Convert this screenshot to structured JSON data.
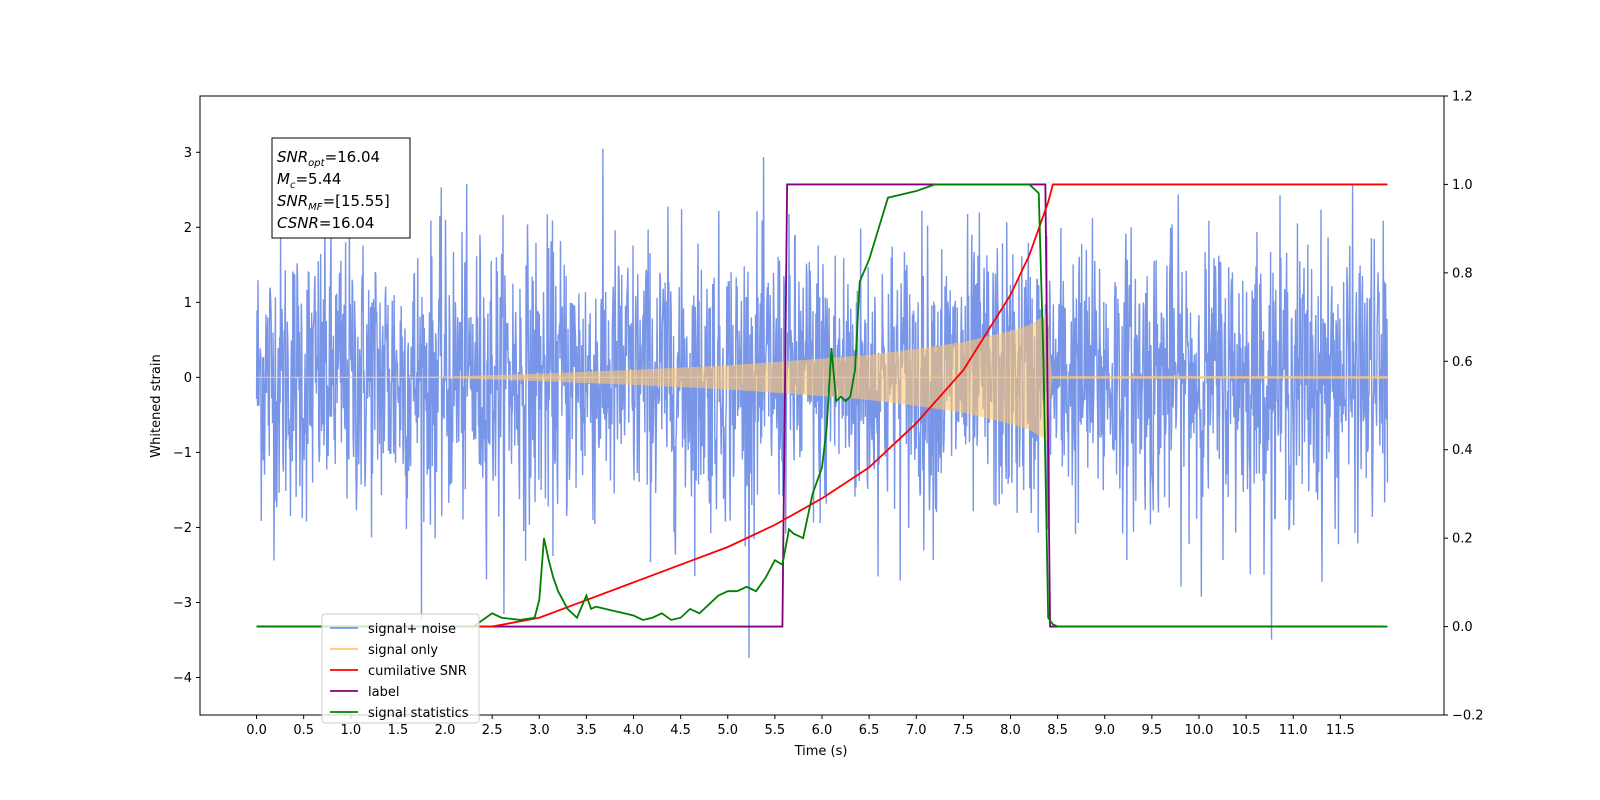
{
  "chart_data": {
    "type": "line",
    "xlabel": "Time (s)",
    "ylabel": "Whitened strain",
    "x_ticks": [
      "0.0",
      "0.5",
      "1.0",
      "1.5",
      "2.0",
      "2.5",
      "3.0",
      "3.5",
      "4.0",
      "4.5",
      "5.0",
      "5.5",
      "6.0",
      "6.5",
      "7.0",
      "7.5",
      "8.0",
      "8.5",
      "9.0",
      "9.5",
      "10.0",
      "10.5",
      "11.0",
      "11.5"
    ],
    "xlim": [
      -0.6,
      12.6
    ],
    "y_left_ticks": [
      "3",
      "2",
      "1",
      "0",
      "−1",
      "−2",
      "−3",
      "−4"
    ],
    "ylim_left": [
      -4.5,
      3.75
    ],
    "y_right_ticks": [
      "1.2",
      "1.0",
      "0.8",
      "0.6",
      "0.4",
      "0.2",
      "0.0",
      "−0.2"
    ],
    "ylim_right": [
      -0.2,
      1.2
    ],
    "info_box": {
      "lines": [
        {
          "base": "SNR",
          "sub": "opt",
          "value": "=16.04"
        },
        {
          "base": "M",
          "sub": "c",
          "value": "=5.44"
        },
        {
          "base": "SNR",
          "sub": "MF",
          "value": "=[15.55]"
        },
        {
          "base": "CSNR",
          "sub": "",
          "value": "=16.04"
        }
      ]
    },
    "legend": {
      "position": "lower-left",
      "entries": [
        {
          "label": "signal+ noise",
          "color": "#7895e8"
        },
        {
          "label": "signal only",
          "color": "#ffc870"
        },
        {
          "label": "cumilative SNR",
          "color": "#ff0000"
        },
        {
          "label": "label",
          "color": "#800080"
        },
        {
          "label": "signal statistics",
          "color": "#008000"
        }
      ]
    },
    "series": [
      {
        "name": "signal+ noise",
        "axis": "left",
        "color": "#7895e8",
        "x_range": [
          0.0,
          12.0
        ],
        "noise_std": 0.93,
        "note": "dense random noise fluctuating roughly between -3.5 and 3.4"
      },
      {
        "name": "signal only",
        "axis": "left",
        "color": "#ffc870",
        "envelope": {
          "x": [
            0.0,
            2.0,
            3.0,
            4.0,
            5.0,
            6.0,
            6.5,
            7.0,
            7.5,
            8.0,
            8.2,
            8.4,
            8.43,
            12.0
          ],
          "amp": [
            0.0,
            0.01,
            0.05,
            0.1,
            0.16,
            0.25,
            0.3,
            0.38,
            0.47,
            0.62,
            0.7,
            0.85,
            0.02,
            0.02
          ]
        }
      },
      {
        "name": "cumilative SNR",
        "axis": "right",
        "color": "#ff0000",
        "x": [
          0,
          2.5,
          3.0,
          3.5,
          4.0,
          4.5,
          5.0,
          5.5,
          6.0,
          6.5,
          7.0,
          7.5,
          8.0,
          8.2,
          8.4,
          8.45,
          8.5,
          12.0
        ],
        "y": [
          0.0,
          0.0,
          0.02,
          0.06,
          0.1,
          0.14,
          0.18,
          0.23,
          0.29,
          0.36,
          0.46,
          0.58,
          0.75,
          0.84,
          0.96,
          1.0,
          1.0,
          1.0
        ]
      },
      {
        "name": "label",
        "axis": "right",
        "color": "#800080",
        "x": [
          0,
          5.58,
          5.63,
          8.37,
          8.42,
          11.95
        ],
        "y": [
          0,
          0,
          1,
          1,
          0,
          0
        ]
      },
      {
        "name": "signal statistics",
        "axis": "right",
        "color": "#008000",
        "x": [
          0,
          2.3,
          2.5,
          2.6,
          2.8,
          2.95,
          3.0,
          3.05,
          3.1,
          3.15,
          3.2,
          3.3,
          3.4,
          3.5,
          3.55,
          3.6,
          3.7,
          3.8,
          3.9,
          4.0,
          4.1,
          4.2,
          4.3,
          4.4,
          4.5,
          4.6,
          4.7,
          4.8,
          4.9,
          5.0,
          5.1,
          5.2,
          5.3,
          5.4,
          5.5,
          5.58,
          5.65,
          5.7,
          5.8,
          5.9,
          6.0,
          6.05,
          6.1,
          6.15,
          6.2,
          6.25,
          6.3,
          6.35,
          6.4,
          6.5,
          6.6,
          6.7,
          6.8,
          6.9,
          7.0,
          7.2,
          7.5,
          8.0,
          8.2,
          8.3,
          8.35,
          8.4,
          8.45,
          8.5,
          12.0
        ],
        "y": [
          0.0,
          0.0,
          0.03,
          0.02,
          0.015,
          0.02,
          0.06,
          0.2,
          0.15,
          0.11,
          0.08,
          0.04,
          0.02,
          0.07,
          0.04,
          0.045,
          0.04,
          0.035,
          0.03,
          0.025,
          0.015,
          0.02,
          0.03,
          0.015,
          0.02,
          0.04,
          0.03,
          0.05,
          0.07,
          0.08,
          0.08,
          0.09,
          0.08,
          0.11,
          0.15,
          0.14,
          0.22,
          0.21,
          0.2,
          0.3,
          0.36,
          0.45,
          0.63,
          0.51,
          0.52,
          0.51,
          0.52,
          0.58,
          0.78,
          0.83,
          0.9,
          0.97,
          0.975,
          0.98,
          0.985,
          1.0,
          1.0,
          1.0,
          1.0,
          0.98,
          0.6,
          0.02,
          0.005,
          0.0,
          0.0
        ]
      }
    ]
  }
}
